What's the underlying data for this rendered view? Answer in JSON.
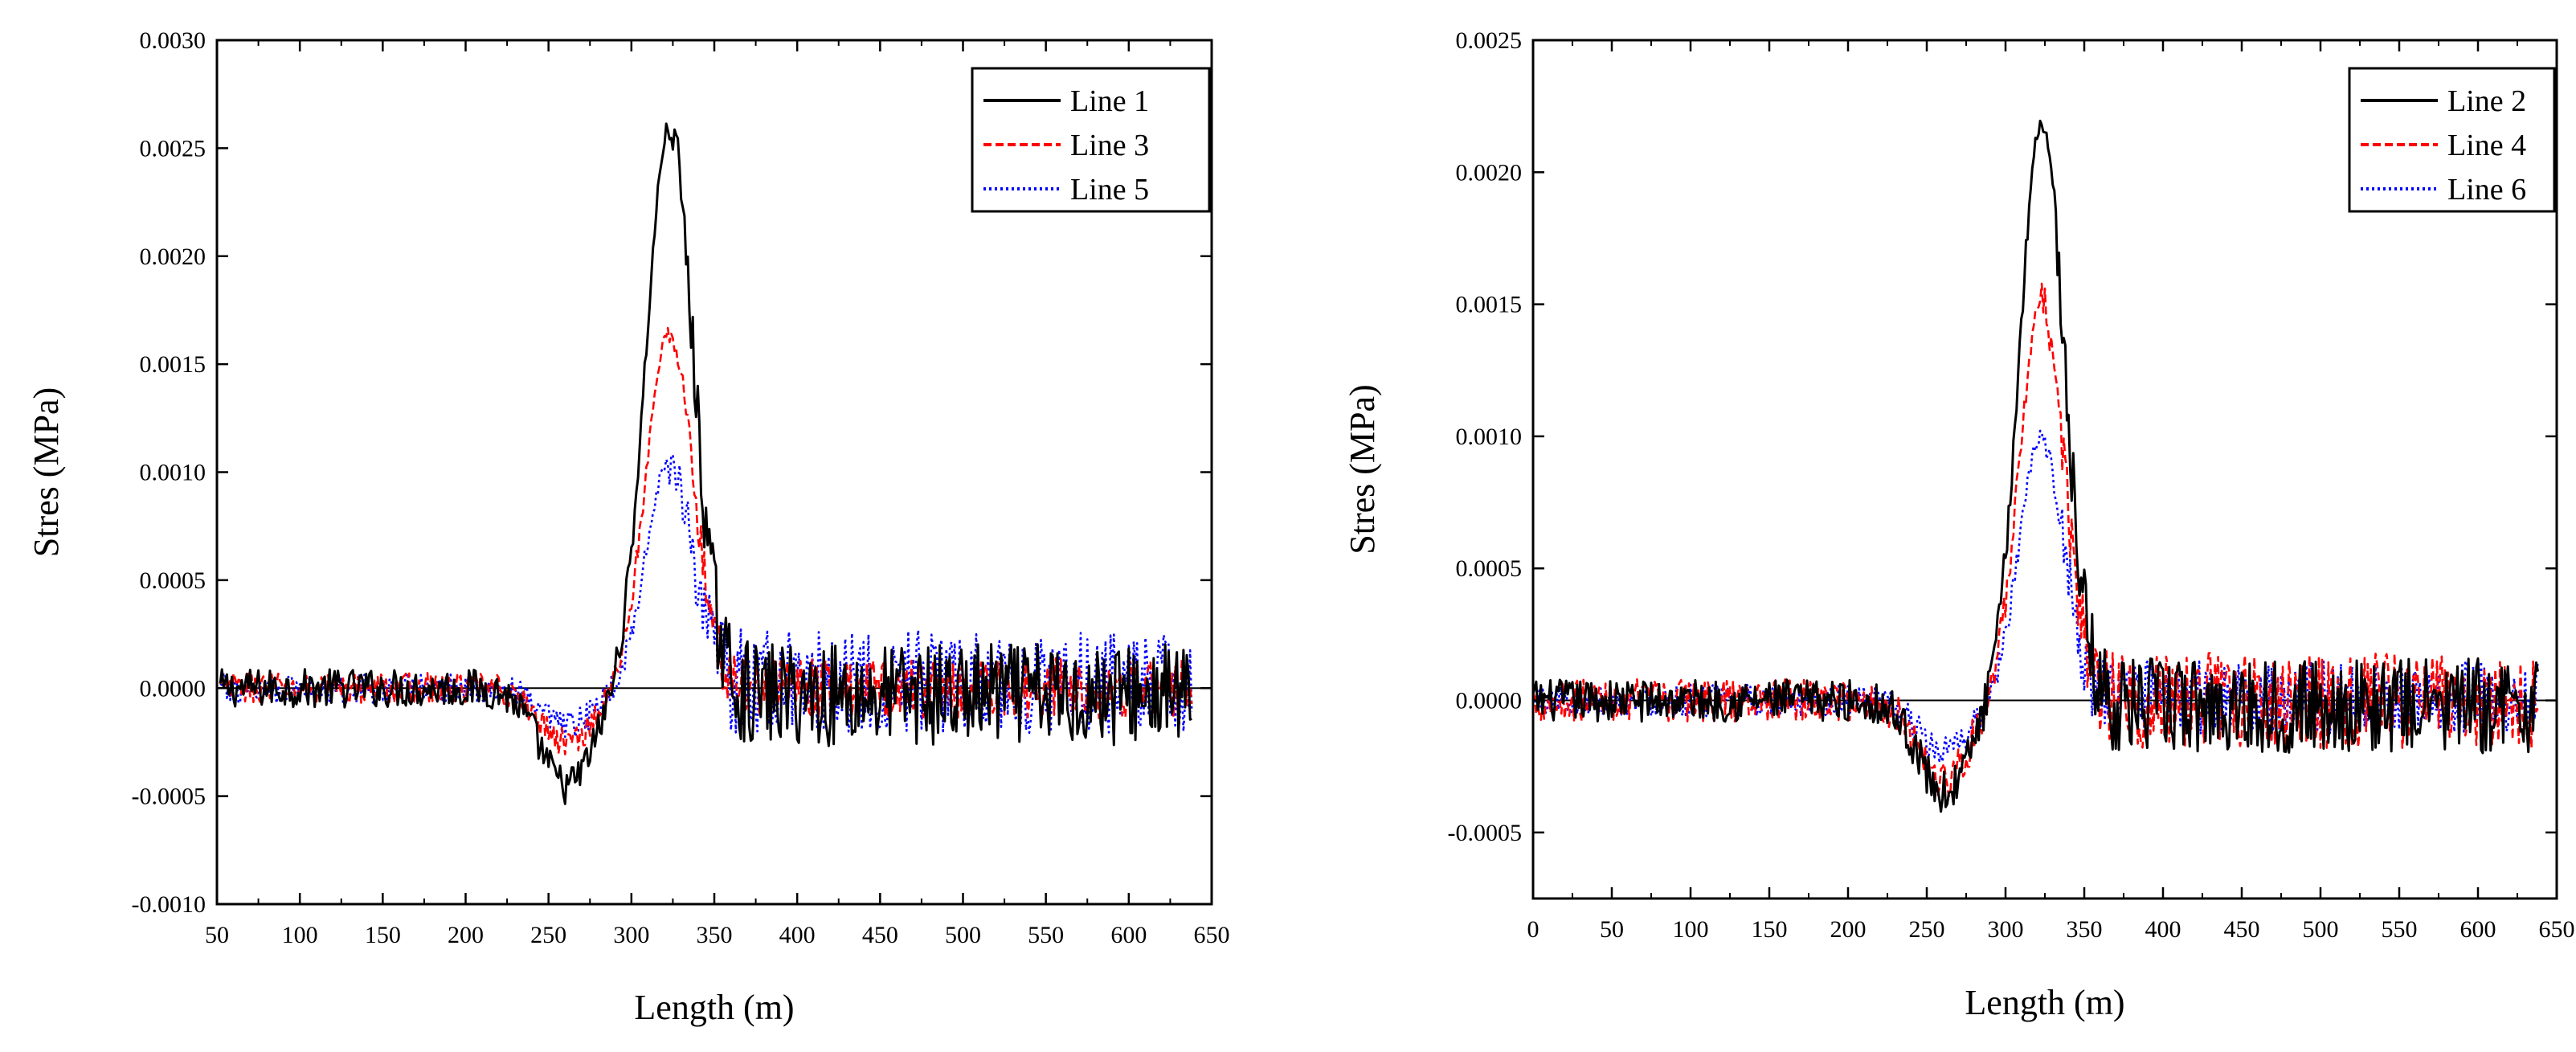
{
  "chart_data": [
    {
      "type": "line",
      "title": "",
      "xlabel": "Length (m)",
      "ylabel": "Stres (MPa)",
      "xlim": [
        50,
        650
      ],
      "ylim": [
        -0.001,
        0.003
      ],
      "xticks": [
        50,
        100,
        150,
        200,
        250,
        300,
        350,
        400,
        450,
        500,
        550,
        600,
        650
      ],
      "xtick_labels": [
        "50",
        "100",
        "150",
        "200",
        "250",
        "300",
        "350",
        "400",
        "450",
        "500",
        "550",
        "600",
        "650"
      ],
      "yticks": [
        -0.001,
        -0.0005,
        0,
        0.0005,
        0.001,
        0.0015,
        0.002,
        0.0025,
        0.003
      ],
      "ytick_labels": [
        "-0.0010",
        "-0.0005",
        "0.0000",
        "0.0005",
        "0.0010",
        "0.0015",
        "0.0020",
        "0.0025",
        "0.0030"
      ],
      "legend_position": "top-right",
      "x_range": [
        52,
        638
      ],
      "peak_center": 323,
      "series": [
        {
          "name": "Line 1",
          "color": "#000000",
          "dash": "solid",
          "peak": 0.0026,
          "noise_left": 9e-05,
          "noise_right": 0.00024,
          "dip": -0.00045,
          "right_offset": -3e-05
        },
        {
          "name": "Line 3",
          "color": "#ff0000",
          "dash": "dashed",
          "peak": 0.00165,
          "noise_left": 7e-05,
          "noise_right": 0.00014,
          "dip": -0.00025,
          "right_offset": 0.0
        },
        {
          "name": "Line 5",
          "color": "#0000ff",
          "dash": "dotted",
          "peak": 0.00105,
          "noise_left": 7e-05,
          "noise_right": 0.00024,
          "dip": -0.00018,
          "right_offset": 3e-05
        }
      ]
    },
    {
      "type": "line",
      "title": "",
      "xlabel": "Length (m)",
      "ylabel": "Stres (MPa)",
      "xlim": [
        0,
        650
      ],
      "ylim": [
        -0.00075,
        0.0025
      ],
      "xticks": [
        0,
        50,
        100,
        150,
        200,
        250,
        300,
        350,
        400,
        450,
        500,
        550,
        600,
        650
      ],
      "xtick_labels": [
        "0",
        "50",
        "100",
        "150",
        "200",
        "250",
        "300",
        "350",
        "400",
        "450",
        "500",
        "550",
        "600",
        "650"
      ],
      "yticks": [
        -0.0005,
        0,
        0.0005,
        0.001,
        0.0015,
        0.002,
        0.0025
      ],
      "ytick_labels": [
        "-0.0005",
        "0.0000",
        "0.0005",
        "0.0010",
        "0.0015",
        "0.0020",
        "0.0025"
      ],
      "legend_position": "top-right",
      "x_range": [
        0,
        638
      ],
      "peak_center": 323,
      "series": [
        {
          "name": "Line 2",
          "color": "#000000",
          "dash": "solid",
          "peak": 0.0022,
          "noise_left": 8e-05,
          "noise_right": 0.00018,
          "dip": -0.00035,
          "right_offset": -2e-05
        },
        {
          "name": "Line 4",
          "color": "#ff0000",
          "dash": "dashed",
          "peak": 0.0015,
          "noise_left": 8e-05,
          "noise_right": 0.00018,
          "dip": -0.0003,
          "right_offset": 0.0
        },
        {
          "name": "Line 6",
          "color": "#0000ff",
          "dash": "dotted",
          "peak": 0.001,
          "noise_left": 6e-05,
          "noise_right": 0.00014,
          "dip": -0.0002,
          "right_offset": 1e-05
        }
      ]
    }
  ]
}
